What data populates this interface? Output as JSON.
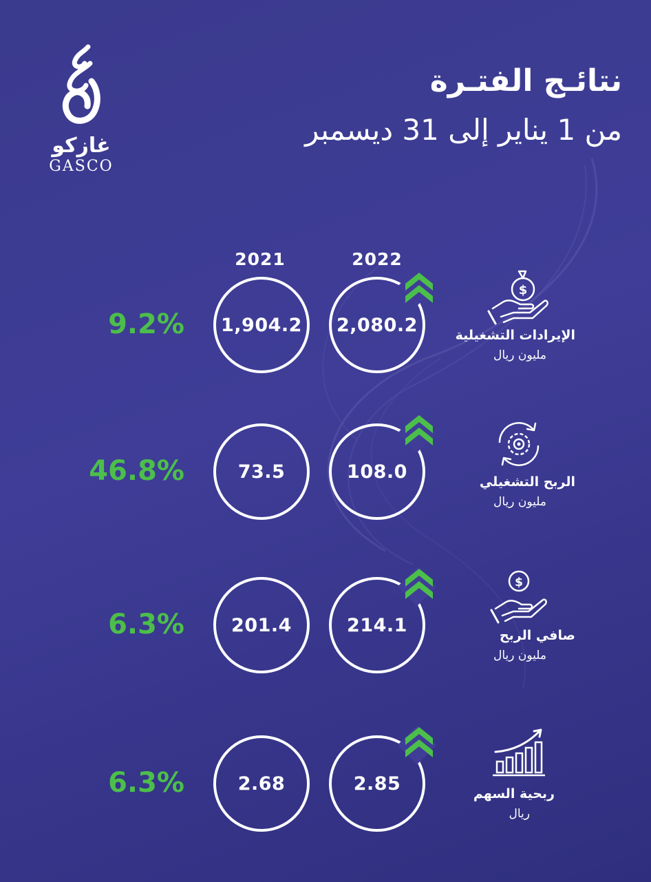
{
  "logo": {
    "arabic": "غازكو",
    "english": "GASCO"
  },
  "header": {
    "title": "نتائـج الفتـرة",
    "subtitle": "من 1 يناير إلى 31 ديسمبر"
  },
  "years": {
    "previous": "2021",
    "current": "2022"
  },
  "colors": {
    "background": "#3f3d97",
    "accent_green": "#4cbf4a",
    "text": "#ffffff"
  },
  "metrics": [
    {
      "label": "الإيرادات التشغيلية",
      "unit": "مليون ريال",
      "value_2022": "2,080.2",
      "value_2021": "1,904.2",
      "change": "9.2%",
      "icon": "money-bag-hand-icon",
      "trend": "up"
    },
    {
      "label": "الربح التشغيلي",
      "unit": "مليون ريال",
      "value_2022": "108.0",
      "value_2021": "73.5",
      "change": "46.8%",
      "icon": "gear-cycle-icon",
      "trend": "up"
    },
    {
      "label": "صافي الربح",
      "unit": "مليون ريال",
      "value_2022": "214.1",
      "value_2021": "201.4",
      "change": "6.3%",
      "icon": "coin-hand-icon",
      "trend": "up"
    },
    {
      "label": "ربحية السهم",
      "unit": "ريال",
      "value_2022": "2.85",
      "value_2021": "2.68",
      "change": "6.3%",
      "icon": "growth-chart-icon",
      "trend": "up"
    }
  ]
}
